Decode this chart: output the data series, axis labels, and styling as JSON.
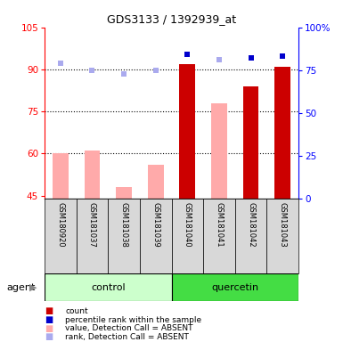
{
  "title": "GDS3133 / 1392939_at",
  "samples": [
    "GSM180920",
    "GSM181037",
    "GSM181038",
    "GSM181039",
    "GSM181040",
    "GSM181041",
    "GSM181042",
    "GSM181043"
  ],
  "ylim_left": [
    44,
    105
  ],
  "ylim_right": [
    0,
    100
  ],
  "yticks_left": [
    45,
    60,
    75,
    90,
    105
  ],
  "yticks_right": [
    0,
    25,
    50,
    75,
    100
  ],
  "ytick_right_labels": [
    "0",
    "25",
    "50",
    "75",
    "100%"
  ],
  "count_values": [
    null,
    null,
    null,
    null,
    92,
    null,
    84,
    91
  ],
  "rank_values": [
    null,
    null,
    null,
    null,
    84,
    null,
    82,
    83
  ],
  "value_absent": [
    60,
    61,
    48,
    56,
    null,
    78,
    null,
    null
  ],
  "rank_absent": [
    79,
    75,
    73,
    75,
    null,
    81,
    null,
    null
  ],
  "bar_width": 0.5,
  "color_count": "#cc0000",
  "color_rank": "#0000cc",
  "color_value_absent": "#ffaaaa",
  "color_rank_absent": "#aaaaee",
  "color_ctrl": "#ccffcc",
  "color_quer": "#44dd44",
  "color_sample_bg": "#d8d8d8",
  "legend_items": [
    {
      "label": "count",
      "color": "#cc0000"
    },
    {
      "label": "percentile rank within the sample",
      "color": "#0000cc"
    },
    {
      "label": "value, Detection Call = ABSENT",
      "color": "#ffaaaa"
    },
    {
      "label": "rank, Detection Call = ABSENT",
      "color": "#aaaaee"
    }
  ]
}
